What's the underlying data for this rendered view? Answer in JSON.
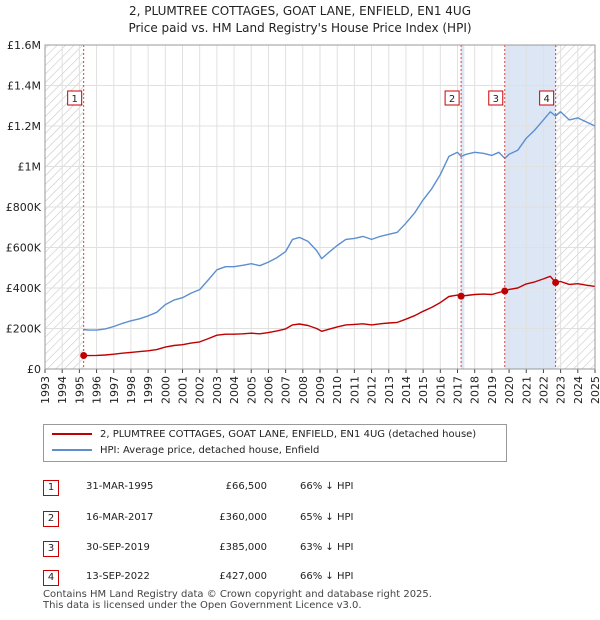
{
  "title_line1": "2, PLUMTREE COTTAGES, GOAT LANE, ENFIELD, EN1 4UG",
  "title_line2": "Price paid vs. HM Land Registry's House Price Index (HPI)",
  "legend": {
    "series1": "2, PLUMTREE COTTAGES, GOAT LANE, ENFIELD, EN1 4UG (detached house)",
    "series2": "HPI: Average price, detached house, Enfield"
  },
  "colors": {
    "price_paid": "#c00000",
    "hpi": "#5b8fd0",
    "marker_box": "#cc0000",
    "shade": "#dde6f5"
  },
  "transactions": [
    {
      "num": "1",
      "date": "31-MAR-1995",
      "price": "£66,500",
      "hpi": "66% ↓ HPI"
    },
    {
      "num": "2",
      "date": "16-MAR-2017",
      "price": "£360,000",
      "hpi": "65% ↓ HPI"
    },
    {
      "num": "3",
      "date": "30-SEP-2019",
      "price": "£385,000",
      "hpi": "63% ↓ HPI"
    },
    {
      "num": "4",
      "date": "13-SEP-2022",
      "price": "£427,000",
      "hpi": "66% ↓ HPI"
    }
  ],
  "footer_line1": "Contains HM Land Registry data © Crown copyright and database right 2025.",
  "footer_line2": "This data is licensed under the Open Government Licence v3.0.",
  "chart_data": {
    "type": "line",
    "title": "2, PLUMTREE COTTAGES, GOAT LANE, ENFIELD, EN1 4UG",
    "subtitle": "Price paid vs. HM Land Registry's House Price Index (HPI)",
    "xlabel": "",
    "ylabel": "",
    "xlim": [
      1993,
      2025
    ],
    "ylim": [
      0,
      1600000
    ],
    "y_ticks": [
      {
        "value": 0,
        "label": "£0"
      },
      {
        "value": 200000,
        "label": "£200K"
      },
      {
        "value": 400000,
        "label": "£400K"
      },
      {
        "value": 600000,
        "label": "£600K"
      },
      {
        "value": 800000,
        "label": "£800K"
      },
      {
        "value": 1000000,
        "label": "£1M"
      },
      {
        "value": 1200000,
        "label": "£1.2M"
      },
      {
        "value": 1400000,
        "label": "£1.4M"
      },
      {
        "value": 1600000,
        "label": "£1.6M"
      }
    ],
    "x_ticks": [
      "1993",
      "1994",
      "1995",
      "1996",
      "1997",
      "1998",
      "1999",
      "2000",
      "2001",
      "2002",
      "2003",
      "2004",
      "2005",
      "2006",
      "2007",
      "2008",
      "2009",
      "2010",
      "2011",
      "2012",
      "2013",
      "2014",
      "2015",
      "2016",
      "2017",
      "2018",
      "2019",
      "2020",
      "2021",
      "2022",
      "2023",
      "2024",
      "2025"
    ],
    "grid": true,
    "hatched_ranges": [
      [
        1993,
        1995.25
      ],
      [
        2022.71,
        2025
      ]
    ],
    "shaded_ranges": [
      [
        2017.21,
        2017.4
      ],
      [
        2019.75,
        2022.71
      ]
    ],
    "sale_markers": [
      {
        "num": "1",
        "x": 1995.25,
        "y": 66500
      },
      {
        "num": "2",
        "x": 2017.21,
        "y": 360000
      },
      {
        "num": "3",
        "x": 2019.75,
        "y": 385000
      },
      {
        "num": "4",
        "x": 2022.71,
        "y": 427000
      }
    ],
    "series": [
      {
        "name": "HPI: Average price, detached house, Enfield",
        "color": "#5b8fd0",
        "points": [
          [
            1995.25,
            195000
          ],
          [
            1995.5,
            192000
          ],
          [
            1996,
            192000
          ],
          [
            1996.5,
            198000
          ],
          [
            1997,
            210000
          ],
          [
            1997.5,
            225000
          ],
          [
            1998,
            238000
          ],
          [
            1998.5,
            248000
          ],
          [
            1999,
            262000
          ],
          [
            1999.5,
            280000
          ],
          [
            2000,
            318000
          ],
          [
            2000.5,
            340000
          ],
          [
            2001,
            352000
          ],
          [
            2001.5,
            375000
          ],
          [
            2002,
            392000
          ],
          [
            2002.5,
            440000
          ],
          [
            2003,
            490000
          ],
          [
            2003.5,
            505000
          ],
          [
            2004,
            505000
          ],
          [
            2004.5,
            512000
          ],
          [
            2005,
            520000
          ],
          [
            2005.5,
            510000
          ],
          [
            2006,
            528000
          ],
          [
            2006.5,
            550000
          ],
          [
            2007,
            580000
          ],
          [
            2007.4,
            640000
          ],
          [
            2007.8,
            650000
          ],
          [
            2008.3,
            630000
          ],
          [
            2008.8,
            585000
          ],
          [
            2009.1,
            545000
          ],
          [
            2009.5,
            575000
          ],
          [
            2010,
            610000
          ],
          [
            2010.5,
            640000
          ],
          [
            2011,
            645000
          ],
          [
            2011.5,
            655000
          ],
          [
            2012,
            640000
          ],
          [
            2012.5,
            655000
          ],
          [
            2013,
            665000
          ],
          [
            2013.5,
            675000
          ],
          [
            2014,
            720000
          ],
          [
            2014.5,
            770000
          ],
          [
            2015,
            835000
          ],
          [
            2015.5,
            890000
          ],
          [
            2016,
            960000
          ],
          [
            2016.5,
            1050000
          ],
          [
            2017,
            1070000
          ],
          [
            2017.21,
            1050000
          ],
          [
            2017.5,
            1060000
          ],
          [
            2018,
            1070000
          ],
          [
            2018.5,
            1065000
          ],
          [
            2019,
            1055000
          ],
          [
            2019.4,
            1070000
          ],
          [
            2019.75,
            1040000
          ],
          [
            2020,
            1060000
          ],
          [
            2020.5,
            1080000
          ],
          [
            2021,
            1140000
          ],
          [
            2021.5,
            1180000
          ],
          [
            2022,
            1230000
          ],
          [
            2022.4,
            1270000
          ],
          [
            2022.71,
            1250000
          ],
          [
            2023,
            1270000
          ],
          [
            2023.5,
            1230000
          ],
          [
            2024,
            1240000
          ],
          [
            2024.5,
            1220000
          ],
          [
            2025,
            1200000
          ]
        ]
      },
      {
        "name": "2, PLUMTREE COTTAGES, GOAT LANE, ENFIELD, EN1 4UG (detached house)",
        "color": "#c00000",
        "points": [
          [
            1995.25,
            66500
          ],
          [
            1995.5,
            66000
          ],
          [
            1996,
            67000
          ],
          [
            1996.5,
            69000
          ],
          [
            1997,
            73000
          ],
          [
            1997.5,
            78000
          ],
          [
            1998,
            82000
          ],
          [
            1998.5,
            86000
          ],
          [
            1999,
            90000
          ],
          [
            1999.5,
            96000
          ],
          [
            2000,
            108000
          ],
          [
            2000.5,
            116000
          ],
          [
            2001,
            120000
          ],
          [
            2001.5,
            128000
          ],
          [
            2002,
            134000
          ],
          [
            2002.5,
            150000
          ],
          [
            2003,
            167000
          ],
          [
            2003.5,
            172000
          ],
          [
            2004,
            172000
          ],
          [
            2004.5,
            174000
          ],
          [
            2005,
            177000
          ],
          [
            2005.5,
            174000
          ],
          [
            2006,
            180000
          ],
          [
            2006.5,
            188000
          ],
          [
            2007,
            198000
          ],
          [
            2007.4,
            218000
          ],
          [
            2007.8,
            222000
          ],
          [
            2008.3,
            215000
          ],
          [
            2008.8,
            200000
          ],
          [
            2009.1,
            186000
          ],
          [
            2009.5,
            196000
          ],
          [
            2010,
            208000
          ],
          [
            2010.5,
            218000
          ],
          [
            2011,
            220000
          ],
          [
            2011.5,
            223000
          ],
          [
            2012,
            218000
          ],
          [
            2012.5,
            223000
          ],
          [
            2013,
            227000
          ],
          [
            2013.5,
            230000
          ],
          [
            2014,
            246000
          ],
          [
            2014.5,
            263000
          ],
          [
            2015,
            285000
          ],
          [
            2015.5,
            304000
          ],
          [
            2016,
            328000
          ],
          [
            2016.5,
            358000
          ],
          [
            2017,
            365000
          ],
          [
            2017.21,
            360000
          ],
          [
            2017.5,
            363000
          ],
          [
            2018,
            368000
          ],
          [
            2018.5,
            370000
          ],
          [
            2019,
            368000
          ],
          [
            2019.4,
            378000
          ],
          [
            2019.75,
            385000
          ],
          [
            2020,
            393000
          ],
          [
            2020.5,
            400000
          ],
          [
            2021,
            420000
          ],
          [
            2021.5,
            430000
          ],
          [
            2022,
            445000
          ],
          [
            2022.4,
            458000
          ],
          [
            2022.71,
            427000
          ],
          [
            2023,
            432000
          ],
          [
            2023.5,
            418000
          ],
          [
            2024,
            421000
          ],
          [
            2024.5,
            414000
          ],
          [
            2025,
            408000
          ]
        ]
      }
    ]
  }
}
